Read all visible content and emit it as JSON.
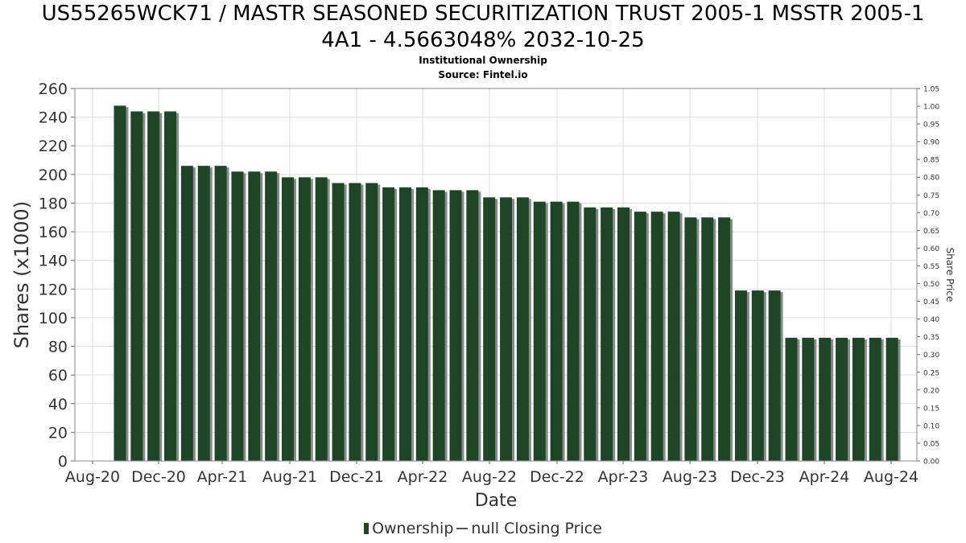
{
  "header": {
    "title_line1": "US55265WCK71 / MASTR SEASONED SECURITIZATION TRUST 2005-1 MSSTR 2005-1",
    "title_line2": "4A1 - 4.5663048% 2032-10-25",
    "subtitle_line1": "Institutional Ownership",
    "subtitle_line2": "Source: Fintel.io"
  },
  "legend": {
    "ownership_label": "Ownership",
    "price_label": "null Closing Price"
  },
  "colors": {
    "bar": "#1e4526",
    "bar_shadow": "#8a8a8a",
    "grid": "#dcdcdc",
    "plot_border": "#888888"
  },
  "chart_data": {
    "type": "bar",
    "title": "US55265WCK71 / MASTR SEASONED SECURITIZATION TRUST 2005-1 MSSTR 2005-1 4A1 - 4.5663048% 2032-10-25",
    "xlabel": "Date",
    "ylabel": "Shares (x1000)",
    "y2label": "Share Price",
    "x_tick_labels": [
      "Aug-20",
      "Dec-20",
      "Apr-21",
      "Aug-21",
      "Dec-21",
      "Apr-22",
      "Aug-22",
      "Dec-22",
      "Apr-23",
      "Aug-23",
      "Dec-23",
      "Apr-24",
      "Aug-24"
    ],
    "ylim": [
      0,
      260
    ],
    "y_ticks": [
      0,
      20,
      40,
      60,
      80,
      100,
      120,
      140,
      160,
      180,
      200,
      220,
      240,
      260
    ],
    "y2lim": [
      0,
      1.05
    ],
    "y2_ticks": [
      "0.00",
      "0.05",
      "0.10",
      "0.15",
      "0.20",
      "0.25",
      "0.30",
      "0.35",
      "0.40",
      "0.45",
      "0.50",
      "0.55",
      "0.60",
      "0.65",
      "0.70",
      "0.75",
      "0.80",
      "0.85",
      "0.90",
      "0.95",
      "1.00",
      "1.05"
    ],
    "grid": true,
    "legend_position": "bottom",
    "series": [
      {
        "name": "Ownership",
        "values": [
          248,
          244,
          244,
          244,
          206,
          206,
          206,
          202,
          202,
          202,
          198,
          198,
          198,
          194,
          194,
          194,
          191,
          191,
          191,
          189,
          189,
          189,
          184,
          184,
          184,
          181,
          181,
          181,
          177,
          177,
          177,
          174,
          174,
          174,
          170,
          170,
          170,
          119,
          119,
          119,
          86,
          86,
          86,
          86,
          86,
          86,
          86
        ]
      }
    ]
  }
}
